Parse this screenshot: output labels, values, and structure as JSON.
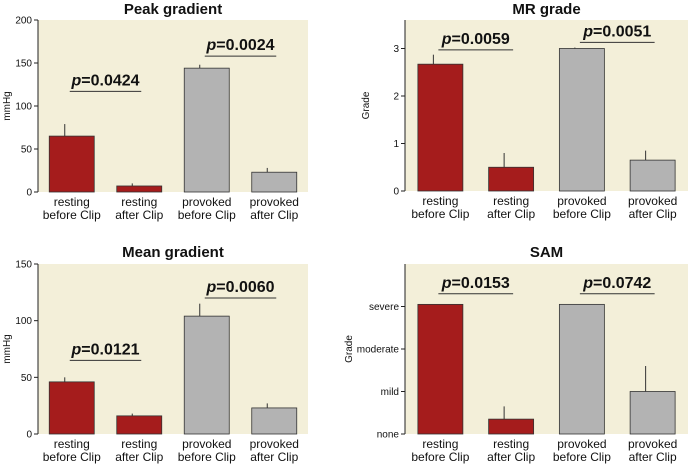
{
  "colors": {
    "panel_bg": "#f3efd9",
    "resting": "#a51c1c",
    "provoked": "#b3b3b3"
  },
  "chart_data": [
    {
      "type": "bar",
      "title": "Peak gradient",
      "ylabel": "mmHg",
      "categories": [
        [
          "resting",
          "before Clip"
        ],
        [
          "resting",
          "after Clip"
        ],
        [
          "provoked",
          "before Clip"
        ],
        [
          "provoked",
          "after Clip"
        ]
      ],
      "values": [
        65,
        7,
        144,
        23
      ],
      "errors": [
        14,
        3,
        4,
        5
      ],
      "ylim": [
        0,
        200
      ],
      "yticks": [
        0,
        50,
        100,
        150,
        200
      ],
      "ytick_labels": [
        "0",
        "50",
        "100",
        "150",
        "200"
      ],
      "annotations": [
        {
          "p": "p",
          "text": "=0.0424",
          "pair": [
            0,
            1
          ],
          "y": 117
        },
        {
          "p": "p",
          "text": "=0.0024",
          "pair": [
            2,
            3
          ],
          "y": 158
        }
      ]
    },
    {
      "type": "bar",
      "title": "MR grade",
      "ylabel": "Grade",
      "categories": [
        [
          "resting",
          "before Clip"
        ],
        [
          "resting",
          "after Clip"
        ],
        [
          "provoked",
          "before Clip"
        ],
        [
          "provoked",
          "after Clip"
        ]
      ],
      "values": [
        2.67,
        0.5,
        3.0,
        0.65
      ],
      "errors": [
        0.2,
        0.3,
        0.02,
        0.2
      ],
      "ylim": [
        0,
        3.6
      ],
      "yticks": [
        0,
        1,
        2,
        3
      ],
      "ytick_labels": [
        "0",
        "1",
        "2",
        "3"
      ],
      "annotations": [
        {
          "p": "p",
          "text": "=0.0059",
          "pair": [
            0,
            1
          ],
          "y": 2.97
        },
        {
          "p": "p",
          "text": "=0.0051",
          "pair": [
            2,
            3
          ],
          "y": 3.13
        }
      ]
    },
    {
      "type": "bar",
      "title": "Mean gradient",
      "ylabel": "mmHg",
      "categories": [
        [
          "resting",
          "before Clip"
        ],
        [
          "resting",
          "after Clip"
        ],
        [
          "provoked",
          "before Clip"
        ],
        [
          "provoked",
          "after Clip"
        ]
      ],
      "values": [
        46,
        16,
        104,
        23
      ],
      "errors": [
        4,
        2,
        11,
        4
      ],
      "ylim": [
        0,
        150
      ],
      "yticks": [
        0,
        50,
        100,
        150
      ],
      "ytick_labels": [
        "0",
        "50",
        "100",
        "150"
      ],
      "annotations": [
        {
          "p": "p",
          "text": "=0.0121",
          "pair": [
            0,
            1
          ],
          "y": 65
        },
        {
          "p": "p",
          "text": "=0.0060",
          "pair": [
            2,
            3
          ],
          "y": 120
        }
      ]
    },
    {
      "type": "bar",
      "title": "SAM",
      "ylabel": "Grade",
      "categories": [
        [
          "resting",
          "before Clip"
        ],
        [
          "resting",
          "after Clip"
        ],
        [
          "provoked",
          "before Clip"
        ],
        [
          "provoked",
          "after Clip"
        ]
      ],
      "values": [
        3.05,
        0.35,
        3.05,
        1.0
      ],
      "errors": [
        0.0,
        0.3,
        0.0,
        0.6
      ],
      "ylim": [
        0,
        4
      ],
      "yticks": [
        0,
        1,
        2,
        3
      ],
      "ytick_labels": [
        "none",
        "mild",
        "moderate",
        "severe"
      ],
      "annotations": [
        {
          "p": "p",
          "text": "=0.0153",
          "pair": [
            0,
            1
          ],
          "y": 3.3
        },
        {
          "p": "p",
          "text": "=0.0742",
          "pair": [
            2,
            3
          ],
          "y": 3.3
        }
      ]
    }
  ]
}
